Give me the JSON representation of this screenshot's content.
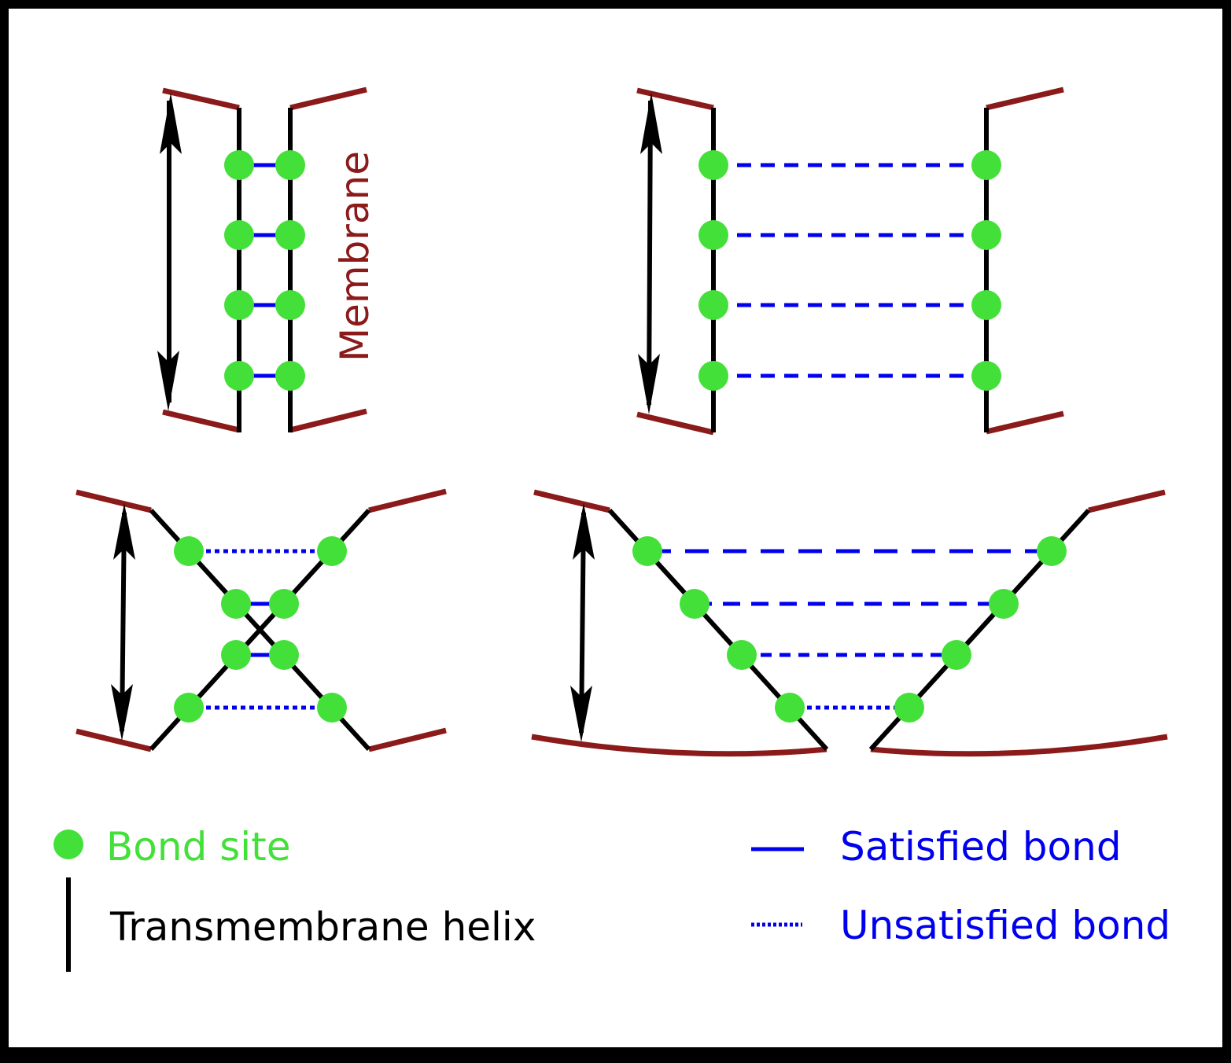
{
  "membrane_label": "Membrane",
  "legend": {
    "bond_site": "Bond site",
    "helix": "Transmembrane helix",
    "satisfied": "Satisfied bond",
    "unsatisfied": "Unsatisfied bond"
  },
  "colors": {
    "membrane": "#8b1a1a",
    "helix": "#000000",
    "bond_site": "#44e03a",
    "bond": "#0000ee",
    "label_green": "#44e03a",
    "label_blue": "#0000ee",
    "arrow": "#000000"
  },
  "panels": [
    {
      "id": "panel-a",
      "description_free": true
    },
    {
      "id": "panel-b",
      "description_free": true
    },
    {
      "id": "panel-c",
      "description_free": true
    },
    {
      "id": "panel-d",
      "description_free": true
    }
  ]
}
